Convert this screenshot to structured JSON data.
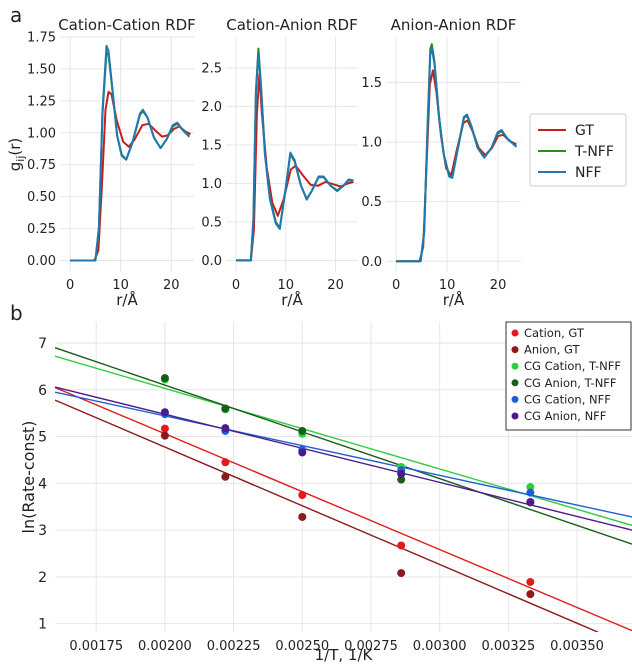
{
  "panel_labels": {
    "a": "a",
    "b": "b"
  },
  "chart_data": [
    {
      "type": "line",
      "title": "Cation-Cation RDF",
      "xlabel": "r/Å",
      "ylabel": "g_ij(r)",
      "xlim": [
        -2,
        24.5
      ],
      "ylim": [
        -0.09,
        1.75
      ],
      "xticks": [
        0,
        10,
        20
      ],
      "yticks": [
        0.0,
        0.25,
        0.5,
        0.75,
        1.0,
        1.25,
        1.5,
        1.75
      ],
      "ytick_labels": [
        "0.00",
        "0.25",
        "0.50",
        "0.75",
        "1.00",
        "1.25",
        "1.50",
        "1.75"
      ],
      "series": [
        {
          "name": "GT",
          "color": "#c41e1e",
          "points": [
            [
              0,
              0
            ],
            [
              4.8,
              0
            ],
            [
              5.6,
              0.08
            ],
            [
              6.3,
              0.6
            ],
            [
              7.0,
              1.18
            ],
            [
              7.6,
              1.32
            ],
            [
              8.2,
              1.3
            ],
            [
              9.2,
              1.1
            ],
            [
              10.5,
              0.93
            ],
            [
              11.6,
              0.89
            ],
            [
              12.8,
              0.95
            ],
            [
              14.3,
              1.06
            ],
            [
              15.5,
              1.07
            ],
            [
              16.8,
              1.02
            ],
            [
              18.2,
              0.97
            ],
            [
              19.3,
              0.98
            ],
            [
              20.5,
              1.03
            ],
            [
              21.6,
              1.05
            ],
            [
              22.8,
              1.01
            ],
            [
              23.8,
              0.99
            ]
          ]
        },
        {
          "name": "T-NFF",
          "color": "#2e8b1e",
          "points": [
            [
              0,
              0
            ],
            [
              5.0,
              0
            ],
            [
              5.7,
              0.25
            ],
            [
              6.4,
              1.15
            ],
            [
              7.2,
              1.63
            ],
            [
              7.6,
              1.61
            ],
            [
              8.4,
              1.32
            ],
            [
              9.3,
              0.98
            ],
            [
              10.2,
              0.83
            ],
            [
              11.1,
              0.79
            ],
            [
              12.3,
              0.92
            ],
            [
              13.8,
              1.14
            ],
            [
              14.4,
              1.17
            ],
            [
              15.3,
              1.12
            ],
            [
              16.6,
              0.96
            ],
            [
              17.9,
              0.88
            ],
            [
              19.1,
              0.95
            ],
            [
              20.3,
              1.05
            ],
            [
              21.2,
              1.07
            ],
            [
              22.3,
              1.02
            ],
            [
              23.6,
              0.97
            ]
          ]
        },
        {
          "name": "NFF",
          "color": "#1f77b4",
          "points": [
            [
              0,
              0
            ],
            [
              5.0,
              0
            ],
            [
              5.7,
              0.26
            ],
            [
              6.4,
              1.17
            ],
            [
              7.2,
              1.68
            ],
            [
              7.6,
              1.64
            ],
            [
              8.4,
              1.33
            ],
            [
              9.3,
              0.98
            ],
            [
              10.2,
              0.82
            ],
            [
              11.1,
              0.79
            ],
            [
              12.3,
              0.92
            ],
            [
              13.8,
              1.15
            ],
            [
              14.4,
              1.18
            ],
            [
              15.3,
              1.12
            ],
            [
              16.6,
              0.96
            ],
            [
              17.9,
              0.88
            ],
            [
              19.1,
              0.95
            ],
            [
              20.3,
              1.06
            ],
            [
              21.2,
              1.08
            ],
            [
              22.3,
              1.02
            ],
            [
              23.6,
              0.97
            ]
          ]
        }
      ]
    },
    {
      "type": "line",
      "title": "Cation-Anion RDF",
      "xlabel": "r/Å",
      "ylabel": "",
      "xlim": [
        -2,
        24.5
      ],
      "ylim": [
        -0.15,
        2.9
      ],
      "xticks": [
        0,
        10,
        20
      ],
      "yticks": [
        0.0,
        0.5,
        1.0,
        1.5,
        2.0,
        2.5
      ],
      "ytick_labels": [
        "0.0",
        "0.5",
        "1.0",
        "1.5",
        "2.0",
        "2.5"
      ],
      "series": [
        {
          "name": "GT",
          "color": "#c41e1e",
          "points": [
            [
              0,
              0
            ],
            [
              3.0,
              0
            ],
            [
              3.6,
              0.4
            ],
            [
              4.2,
              1.9
            ],
            [
              4.7,
              2.42
            ],
            [
              5.2,
              1.9
            ],
            [
              6.2,
              1.2
            ],
            [
              7.3,
              0.75
            ],
            [
              8.4,
              0.58
            ],
            [
              9.6,
              0.8
            ],
            [
              11.0,
              1.18
            ],
            [
              12.0,
              1.23
            ],
            [
              13.5,
              1.1
            ],
            [
              15.0,
              0.98
            ],
            [
              16.5,
              0.97
            ],
            [
              18.0,
              1.02
            ],
            [
              19.5,
              0.99
            ],
            [
              21.0,
              0.96
            ],
            [
              22.5,
              1.0
            ],
            [
              23.6,
              1.02
            ]
          ]
        },
        {
          "name": "T-NFF",
          "color": "#2e8b1e",
          "points": [
            [
              0,
              0
            ],
            [
              3.0,
              0
            ],
            [
              3.5,
              0.55
            ],
            [
              4.0,
              2.2
            ],
            [
              4.5,
              2.75
            ],
            [
              5.0,
              2.3
            ],
            [
              5.8,
              1.4
            ],
            [
              6.8,
              0.82
            ],
            [
              8.0,
              0.5
            ],
            [
              8.8,
              0.42
            ],
            [
              10.0,
              0.95
            ],
            [
              10.9,
              1.38
            ],
            [
              11.8,
              1.28
            ],
            [
              13.0,
              0.98
            ],
            [
              14.2,
              0.8
            ],
            [
              15.2,
              0.9
            ],
            [
              16.6,
              1.08
            ],
            [
              17.6,
              1.08
            ],
            [
              19.0,
              0.97
            ],
            [
              20.3,
              0.91
            ],
            [
              21.6,
              0.97
            ],
            [
              22.6,
              1.04
            ],
            [
              23.6,
              1.03
            ]
          ]
        },
        {
          "name": "NFF",
          "color": "#1f77b4",
          "points": [
            [
              0,
              0
            ],
            [
              3.0,
              0
            ],
            [
              3.5,
              0.52
            ],
            [
              4.0,
              2.15
            ],
            [
              4.5,
              2.7
            ],
            [
              5.0,
              2.27
            ],
            [
              5.8,
              1.38
            ],
            [
              6.8,
              0.8
            ],
            [
              8.0,
              0.48
            ],
            [
              8.8,
              0.41
            ],
            [
              10.0,
              0.94
            ],
            [
              10.9,
              1.4
            ],
            [
              11.8,
              1.3
            ],
            [
              13.0,
              0.98
            ],
            [
              14.2,
              0.79
            ],
            [
              15.2,
              0.9
            ],
            [
              16.6,
              1.09
            ],
            [
              17.6,
              1.09
            ],
            [
              19.0,
              0.97
            ],
            [
              20.3,
              0.9
            ],
            [
              21.6,
              0.97
            ],
            [
              22.6,
              1.05
            ],
            [
              23.6,
              1.04
            ]
          ]
        }
      ]
    },
    {
      "type": "line",
      "title": "Anion-Anion RDF",
      "xlabel": "r/Å",
      "ylabel": "",
      "xlim": [
        -2,
        24.5
      ],
      "ylim": [
        -0.09,
        1.88
      ],
      "xticks": [
        0,
        10,
        20
      ],
      "yticks": [
        0.0,
        0.5,
        1.0,
        1.5
      ],
      "ytick_labels": [
        "0.0",
        "0.5",
        "1.0",
        "1.5"
      ],
      "series": [
        {
          "name": "GT",
          "color": "#c41e1e",
          "points": [
            [
              0,
              0
            ],
            [
              4.6,
              0
            ],
            [
              5.3,
              0.12
            ],
            [
              6.0,
              0.85
            ],
            [
              6.6,
              1.48
            ],
            [
              7.2,
              1.6
            ],
            [
              7.9,
              1.42
            ],
            [
              8.8,
              1.05
            ],
            [
              9.8,
              0.78
            ],
            [
              10.8,
              0.72
            ],
            [
              12.0,
              0.95
            ],
            [
              13.2,
              1.16
            ],
            [
              14.0,
              1.18
            ],
            [
              15.0,
              1.09
            ],
            [
              16.2,
              0.95
            ],
            [
              17.5,
              0.89
            ],
            [
              18.8,
              0.95
            ],
            [
              20.0,
              1.05
            ],
            [
              21.0,
              1.06
            ],
            [
              22.2,
              1.01
            ],
            [
              23.6,
              0.98
            ]
          ]
        },
        {
          "name": "T-NFF",
          "color": "#2e8b1e",
          "points": [
            [
              0,
              0
            ],
            [
              4.8,
              0
            ],
            [
              5.5,
              0.25
            ],
            [
              6.2,
              1.2
            ],
            [
              6.7,
              1.78
            ],
            [
              7.0,
              1.82
            ],
            [
              7.5,
              1.68
            ],
            [
              8.4,
              1.22
            ],
            [
              9.3,
              0.9
            ],
            [
              10.4,
              0.72
            ],
            [
              11.0,
              0.7
            ],
            [
              12.0,
              0.92
            ],
            [
              13.3,
              1.2
            ],
            [
              13.9,
              1.22
            ],
            [
              14.8,
              1.12
            ],
            [
              16.0,
              0.95
            ],
            [
              17.3,
              0.87
            ],
            [
              18.7,
              0.95
            ],
            [
              19.9,
              1.07
            ],
            [
              20.7,
              1.09
            ],
            [
              21.8,
              1.03
            ],
            [
              23.6,
              0.96
            ]
          ]
        },
        {
          "name": "NFF",
          "color": "#1f77b4",
          "points": [
            [
              0,
              0
            ],
            [
              4.8,
              0
            ],
            [
              5.5,
              0.24
            ],
            [
              6.2,
              1.18
            ],
            [
              6.7,
              1.74
            ],
            [
              7.0,
              1.78
            ],
            [
              7.5,
              1.66
            ],
            [
              8.4,
              1.21
            ],
            [
              9.3,
              0.9
            ],
            [
              10.4,
              0.71
            ],
            [
              11.0,
              0.7
            ],
            [
              12.0,
              0.92
            ],
            [
              13.3,
              1.21
            ],
            [
              13.9,
              1.23
            ],
            [
              14.8,
              1.13
            ],
            [
              16.0,
              0.95
            ],
            [
              17.3,
              0.87
            ],
            [
              18.7,
              0.95
            ],
            [
              19.9,
              1.08
            ],
            [
              20.7,
              1.1
            ],
            [
              21.8,
              1.03
            ],
            [
              23.6,
              0.96
            ]
          ]
        }
      ]
    },
    {
      "type": "scatter",
      "title": "",
      "xlabel": "1/T, 1/K",
      "ylabel": "ln(Rate-const)",
      "xlim": [
        0.0016,
        0.0037
      ],
      "ylim": [
        0.82,
        7.45
      ],
      "xticks": [
        0.00175,
        0.002,
        0.00225,
        0.0025,
        0.00275,
        0.003,
        0.00325,
        0.0035
      ],
      "xtick_labels": [
        "0.00175",
        "0.00200",
        "0.00225",
        "0.00250",
        "0.00275",
        "0.00300",
        "0.00325",
        "0.00350"
      ],
      "yticks": [
        1,
        2,
        3,
        4,
        5,
        6,
        7
      ],
      "ytick_labels": [
        "1",
        "2",
        "3",
        "4",
        "5",
        "6",
        "7"
      ],
      "legend_position": "top-right",
      "series": [
        {
          "name": "Cation, GT",
          "color": "#e31a1c",
          "x": [
            0.002,
            0.00222,
            0.0025,
            0.00286,
            0.00333
          ],
          "y": [
            5.17,
            4.45,
            3.75,
            2.67,
            1.89
          ],
          "fit": [
            [
              0.0016,
              6.05
            ],
            [
              0.0037,
              0.85
            ]
          ]
        },
        {
          "name": "Anion, GT",
          "color": "#8b1a1a",
          "x": [
            0.002,
            0.00222,
            0.0025,
            0.00286,
            0.00333
          ],
          "y": [
            5.02,
            4.14,
            3.28,
            2.08,
            1.63
          ],
          "fit": [
            [
              0.0016,
              5.78
            ],
            [
              0.003575,
              0.82
            ]
          ]
        },
        {
          "name": "CG Cation, T-NFF",
          "color": "#2ecc40",
          "x": [
            0.002,
            0.00222,
            0.0025,
            0.00286,
            0.00333
          ],
          "y": [
            6.22,
            5.58,
            5.06,
            4.35,
            3.92
          ],
          "fit": [
            [
              0.0016,
              6.72
            ],
            [
              0.0037,
              3.1
            ]
          ]
        },
        {
          "name": "CG Anion, T-NFF",
          "color": "#1a5c1a",
          "x": [
            0.002,
            0.00222,
            0.0025,
            0.00286,
            0.00333
          ],
          "y": [
            6.25,
            5.6,
            5.12,
            4.08,
            3.59
          ],
          "fit": [
            [
              0.0016,
              6.9
            ],
            [
              0.0037,
              2.7
            ]
          ]
        },
        {
          "name": "CG Cation, NFF",
          "color": "#1f5fd6",
          "x": [
            0.002,
            0.00222,
            0.0025,
            0.00286,
            0.00333
          ],
          "y": [
            5.48,
            5.12,
            4.72,
            4.28,
            3.8
          ],
          "fit": [
            [
              0.0016,
              5.95
            ],
            [
              0.0037,
              3.28
            ]
          ]
        },
        {
          "name": "CG Anion, NFF",
          "color": "#4b1a8b",
          "x": [
            0.002,
            0.00222,
            0.0025,
            0.00286,
            0.00333
          ],
          "y": [
            5.52,
            5.18,
            4.66,
            4.2,
            3.6
          ],
          "fit": [
            [
              0.0016,
              6.06
            ],
            [
              0.0037,
              3.0
            ]
          ]
        }
      ]
    }
  ]
}
